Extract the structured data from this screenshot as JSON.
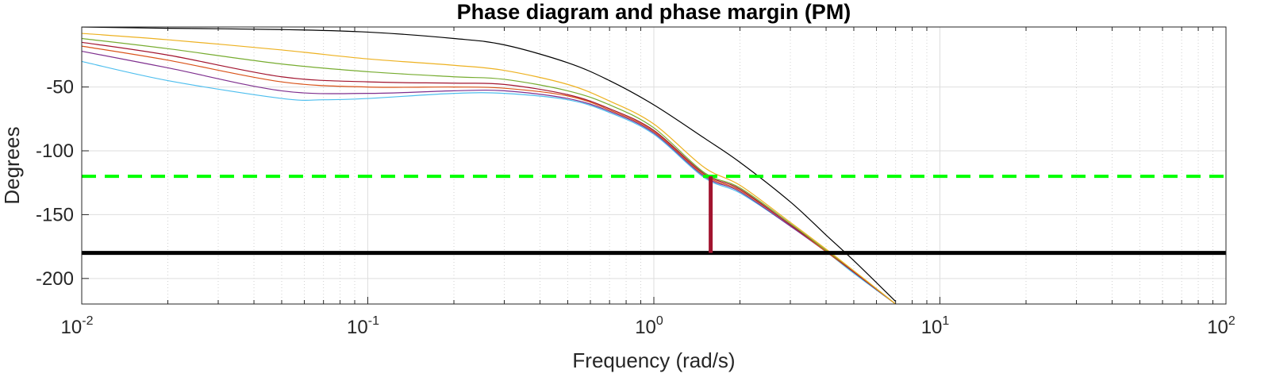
{
  "chart_data": {
    "type": "line",
    "title": "Phase diagram and phase margin (PM)",
    "xlabel": "Frequency (rad/s)",
    "ylabel": "Degrees",
    "xscale": "log",
    "xlim": [
      0.01,
      100
    ],
    "ylim": [
      -220,
      -3
    ],
    "grid": true,
    "legend": "none",
    "x_tick_labels": [
      {
        "value": 0.01,
        "base": "10",
        "exp": "-2"
      },
      {
        "value": 0.1,
        "base": "10",
        "exp": "-1"
      },
      {
        "value": 1,
        "base": "10",
        "exp": "0"
      },
      {
        "value": 10,
        "base": "10",
        "exp": "1"
      },
      {
        "value": 100,
        "base": "10",
        "exp": "2"
      }
    ],
    "y_tick_labels": [
      {
        "value": -50,
        "label": "-50"
      },
      {
        "value": -100,
        "label": "-100"
      },
      {
        "value": -150,
        "label": "-150"
      },
      {
        "value": -200,
        "label": "-200"
      }
    ],
    "series": [
      {
        "color": "#000000",
        "x": [
          0.01,
          0.02,
          0.05,
          0.1,
          0.2,
          0.3,
          0.5,
          0.7,
          1.0,
          1.5,
          2.0,
          3.0,
          4.0,
          5.0,
          7.0
        ],
        "y": [
          -3,
          -4,
          -5,
          -7,
          -12,
          -17,
          -31,
          -45,
          -64,
          -90,
          -109,
          -140,
          -166,
          -186,
          -218
        ]
      },
      {
        "color": "#EDB120",
        "x": [
          0.01,
          0.02,
          0.05,
          0.1,
          0.2,
          0.3,
          0.5,
          0.7,
          1.0,
          1.5,
          2.0,
          3.0,
          4.0,
          5.0,
          7.0
        ],
        "y": [
          -8,
          -13,
          -21,
          -28,
          -33,
          -37,
          -48,
          -61,
          -79,
          -113,
          -127,
          -156,
          -177,
          -194,
          -220
        ]
      },
      {
        "color": "#77AC30",
        "x": [
          0.01,
          0.02,
          0.05,
          0.1,
          0.2,
          0.3,
          0.5,
          0.7,
          1.0,
          1.5,
          2.0,
          3.0,
          4.0,
          5.0,
          7.0
        ],
        "y": [
          -12,
          -20,
          -32,
          -38,
          -42,
          -44,
          -53,
          -64,
          -82,
          -117,
          -129,
          -157,
          -178,
          -194,
          -220
        ]
      },
      {
        "color": "#A2142F",
        "x": [
          0.01,
          0.02,
          0.05,
          0.1,
          0.2,
          0.3,
          0.5,
          0.7,
          1.0,
          1.5,
          2.0,
          3.0,
          4.0,
          5.0,
          7.0
        ],
        "y": [
          -15,
          -25,
          -42,
          -46,
          -47,
          -48,
          -56,
          -67,
          -84,
          -118,
          -130,
          -158,
          -178,
          -195,
          -220
        ]
      },
      {
        "color": "#D95319",
        "x": [
          0.01,
          0.02,
          0.05,
          0.1,
          0.2,
          0.3,
          0.5,
          0.7,
          1.0,
          1.5,
          2.0,
          3.0,
          4.0,
          5.0,
          7.0
        ],
        "y": [
          -18,
          -29,
          -46,
          -50,
          -50,
          -51,
          -57,
          -68,
          -85,
          -119,
          -131,
          -158,
          -179,
          -195,
          -220
        ]
      },
      {
        "color": "#7E2F8E",
        "x": [
          0.01,
          0.02,
          0.05,
          0.1,
          0.2,
          0.3,
          0.5,
          0.7,
          1.0,
          1.5,
          2.0,
          3.0,
          4.0,
          5.0,
          7.0
        ],
        "y": [
          -22,
          -35,
          -53,
          -55,
          -53,
          -53,
          -59,
          -69,
          -86,
          -120,
          -132,
          -159,
          -179,
          -195,
          -220
        ]
      },
      {
        "color": "#4DBEEE",
        "x": [
          0.01,
          0.02,
          0.05,
          0.07,
          0.1,
          0.2,
          0.3,
          0.5,
          0.7,
          1.0,
          1.5,
          2.0,
          3.0,
          4.0,
          5.0,
          7.0
        ],
        "y": [
          -30,
          -45,
          -59,
          -60,
          -59,
          -55,
          -55,
          -60,
          -70,
          -87,
          -121,
          -133,
          -159,
          -179,
          -196,
          -220
        ]
      }
    ],
    "reference_lines": [
      {
        "orientation": "horizontal",
        "y": -120,
        "style": "dashed",
        "color": "#00FF00"
      },
      {
        "orientation": "horizontal",
        "y": -180,
        "style": "solid",
        "color": "#000000"
      },
      {
        "orientation": "vertical",
        "x": 1.58,
        "y_from": -180,
        "y_to": -120,
        "style": "solid",
        "color": "#A2142F"
      }
    ]
  }
}
